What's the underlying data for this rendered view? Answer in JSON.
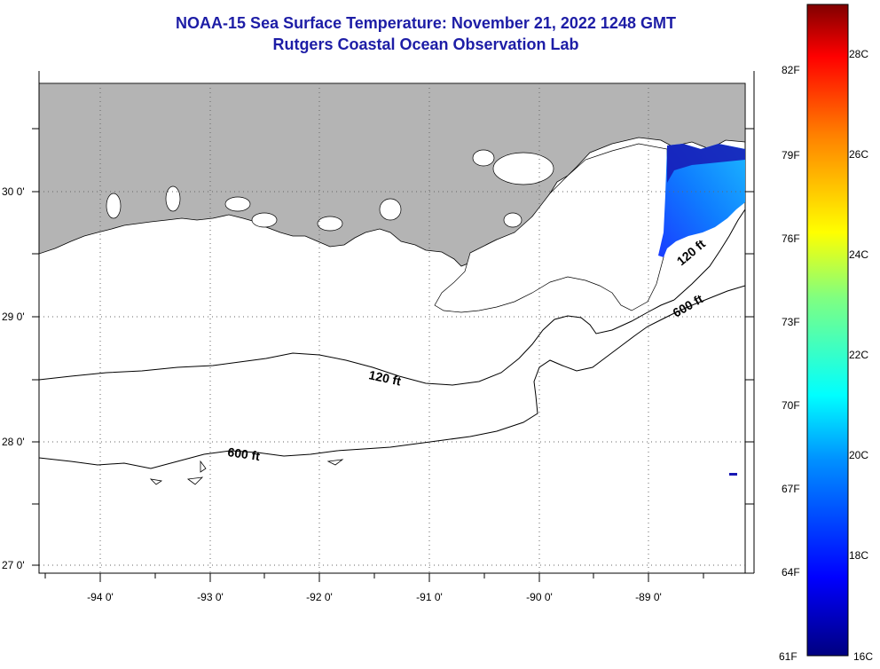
{
  "header": {
    "title_line1": "NOAA-15 Sea Surface Temperature:  November 21, 2022 1248 GMT",
    "title_line2": "Rutgers Coastal Ocean Observation Lab"
  },
  "map": {
    "lat_labels": [
      "30 0'",
      "29 0'",
      "28 0'",
      "27 0'"
    ],
    "lon_labels": [
      "-94 0'",
      "-93 0'",
      "-92 0'",
      "-91 0'",
      "-90 0'",
      "-89 0'"
    ],
    "contours": [
      {
        "label": "120 ft"
      },
      {
        "label": "600 ft"
      },
      {
        "label": "120 ft"
      },
      {
        "label": "600 ft"
      }
    ],
    "colors": {
      "land": "#b4b4b4",
      "water": "#ffffff",
      "title": "#1d1da6"
    }
  },
  "colorbar": {
    "fahrenheit_labels": [
      "82F",
      "79F",
      "76F",
      "73F",
      "70F",
      "67F",
      "64F",
      "61F"
    ],
    "celsius_labels": [
      "28C",
      "26C",
      "24C",
      "22C",
      "20C",
      "18C",
      "16C"
    ],
    "range_c": [
      16,
      29
    ]
  }
}
